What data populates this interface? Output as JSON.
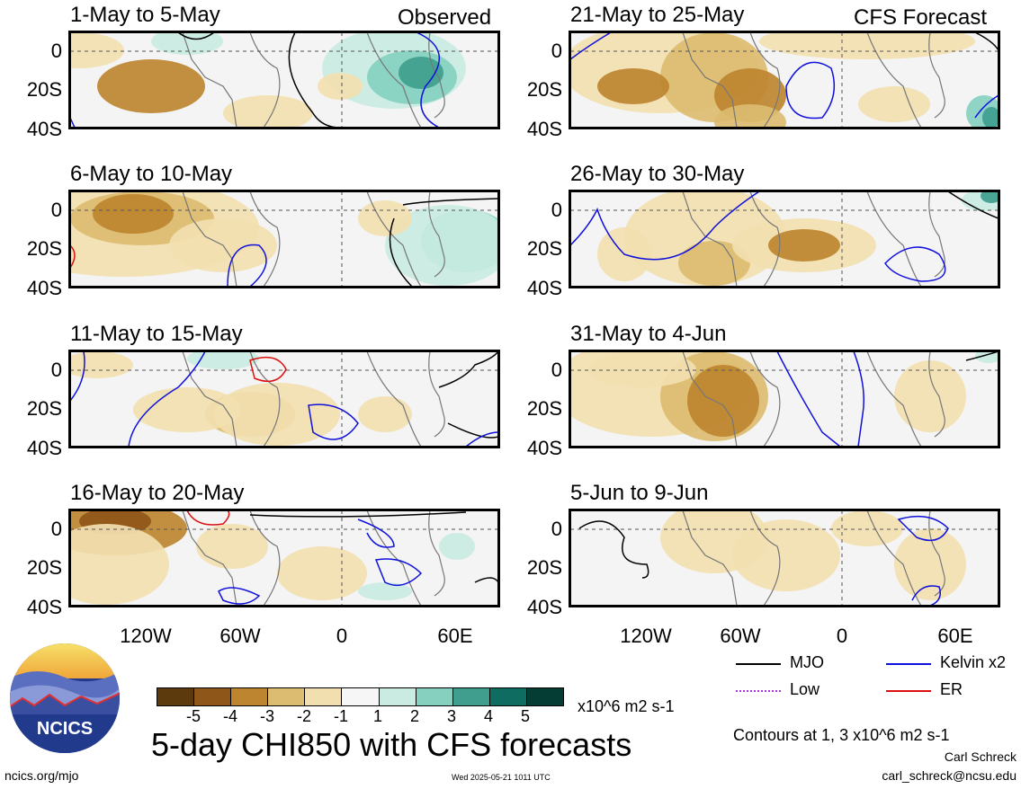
{
  "chart_data": {
    "type": "heatmap",
    "title": "5-day CHI850 with CFS forecasts",
    "unit_label": "x10^6 m2 s-1",
    "observed_label": "Observed",
    "forecast_label": "CFS Forecast",
    "y_ticks": [
      "0",
      "20S",
      "40S"
    ],
    "x_ticks": [
      "120W",
      "60W",
      "0",
      "60E"
    ],
    "panels": [
      {
        "title": "1-May to 5-May",
        "group": "observed"
      },
      {
        "title": "6-May to 10-May",
        "group": "observed"
      },
      {
        "title": "11-May to 15-May",
        "group": "observed"
      },
      {
        "title": "16-May to 20-May",
        "group": "observed"
      },
      {
        "title": "21-May to 25-May",
        "group": "forecast"
      },
      {
        "title": "26-May to 30-May",
        "group": "forecast"
      },
      {
        "title": "31-May to 4-Jun",
        "group": "forecast"
      },
      {
        "title": "5-Jun to 9-Jun",
        "group": "forecast"
      }
    ],
    "colorbar": {
      "ticks": [
        "-5",
        "-4",
        "-3",
        "-2",
        "-1",
        "1",
        "2",
        "3",
        "4",
        "5"
      ],
      "colors": [
        "#5c3a0e",
        "#8f5619",
        "#bd8530",
        "#dcbc70",
        "#f2dfb0",
        "#f6f6f6",
        "#c9ebe2",
        "#86d0c0",
        "#3f9e8e",
        "#0f6c60",
        "#033d33"
      ]
    },
    "contour_legend": [
      {
        "label": "MJO",
        "color": "#000000"
      },
      {
        "label": "Kelvin x2",
        "color": "#1010dd"
      },
      {
        "label": "Low",
        "color": "#b030e0"
      },
      {
        "label": "ER",
        "color": "#dd1010"
      }
    ],
    "contour_note": "Contours at 1, 3 x10^6 m2 s-1"
  },
  "footer": {
    "logo_text": "NCICS",
    "url": "ncics.org/mjo",
    "timestamp": "Wed 2025-05-21 1011 UTC",
    "author": "Carl Schreck",
    "email": "carl_schreck@ncsu.edu"
  }
}
